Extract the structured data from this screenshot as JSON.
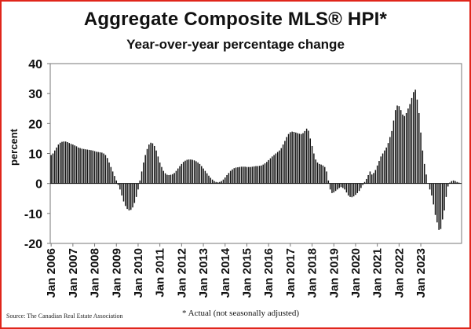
{
  "header": {
    "title": "Aggregate Composite MLS® HPI*",
    "subtitle": "Year-over-year percentage change"
  },
  "footer": {
    "source": "Source: The Canadian Real Estate Association",
    "note": "* Actual (not seasonally adjusted)"
  },
  "chart_data": {
    "type": "bar",
    "title": "Aggregate Composite MLS® HPI*",
    "subtitle": "Year-over-year percentage change",
    "ylabel": "percent",
    "xlabel": "",
    "ylim": [
      -20,
      40
    ],
    "yticks": [
      -20,
      -10,
      0,
      10,
      20,
      30,
      40
    ],
    "xtick_labels": [
      "Jan 2006",
      "Jan 2007",
      "Jan 2008",
      "Jan 2009",
      "Jan 2010",
      "Jan 2011",
      "Jan 2012",
      "Jan 2013",
      "Jan 2014",
      "Jan 2015",
      "Jan 2016",
      "Jan 2017",
      "Jan 2018",
      "Jan 2019",
      "Jan 2020",
      "Jan 2021",
      "Jan 2022",
      "Jan 2023"
    ],
    "grid": false,
    "bar_color": "#111111",
    "start": "Jan 2006",
    "frequency": "monthly",
    "values": [
      9.5,
      10.0,
      11.0,
      12.0,
      13.0,
      13.6,
      13.9,
      14.0,
      14.0,
      13.8,
      13.5,
      13.2,
      13.0,
      12.7,
      12.4,
      12.0,
      11.8,
      11.6,
      11.5,
      11.4,
      11.3,
      11.2,
      11.1,
      11.0,
      10.8,
      10.6,
      10.5,
      10.4,
      10.3,
      10.0,
      9.5,
      8.5,
      7.0,
      5.5,
      4.0,
      2.5,
      1.0,
      -0.5,
      -2.0,
      -4.0,
      -6.0,
      -7.5,
      -8.5,
      -9.0,
      -8.8,
      -8.0,
      -6.5,
      -4.5,
      -2.0,
      1.0,
      4.0,
      7.0,
      9.5,
      11.5,
      13.0,
      13.6,
      13.4,
      12.5,
      11.0,
      9.0,
      7.0,
      5.5,
      4.2,
      3.4,
      2.9,
      2.8,
      2.9,
      3.1,
      3.5,
      4.2,
      5.0,
      5.8,
      6.5,
      7.2,
      7.6,
      7.9,
      8.0,
      8.0,
      7.9,
      7.7,
      7.4,
      7.0,
      6.5,
      5.8,
      5.0,
      4.2,
      3.4,
      2.6,
      1.9,
      1.3,
      0.8,
      0.5,
      0.4,
      0.5,
      0.8,
      1.3,
      2.0,
      2.8,
      3.5,
      4.2,
      4.7,
      5.1,
      5.3,
      5.4,
      5.5,
      5.6,
      5.6,
      5.6,
      5.5,
      5.5,
      5.5,
      5.6,
      5.7,
      5.8,
      5.8,
      5.9,
      6.0,
      6.3,
      6.7,
      7.2,
      7.8,
      8.4,
      9.0,
      9.5,
      10.0,
      10.5,
      11.0,
      11.8,
      13.0,
      14.2,
      15.5,
      16.5,
      17.1,
      17.3,
      17.2,
      17.0,
      16.8,
      16.6,
      16.5,
      16.8,
      17.5,
      18.3,
      17.6,
      15.0,
      12.5,
      10.0,
      8.0,
      7.0,
      6.5,
      6.3,
      6.0,
      5.5,
      4.0,
      1.0,
      -2.0,
      -3.2,
      -3.0,
      -2.5,
      -2.0,
      -1.5,
      -1.2,
      -1.5,
      -2.0,
      -3.0,
      -4.0,
      -4.5,
      -4.6,
      -4.3,
      -3.8,
      -3.2,
      -2.5,
      -1.5,
      -0.5,
      0.5,
      1.5,
      2.8,
      4.0,
      3.0,
      3.5,
      4.5,
      6.0,
      7.5,
      9.0,
      10.0,
      11.0,
      12.0,
      13.5,
      15.5,
      17.5,
      21.0,
      24.5,
      26.0,
      25.8,
      24.5,
      23.0,
      22.5,
      23.5,
      25.0,
      26.5,
      28.5,
      30.5,
      31.3,
      28.0,
      23.5,
      17.0,
      11.0,
      6.5,
      3.0,
      0.0,
      -2.0,
      -4.0,
      -7.0,
      -10.5,
      -13.0,
      -15.5,
      -15.2,
      -12.0,
      -9.0,
      -4.5,
      -1.0,
      0.3,
      0.8,
      1.0,
      0.8,
      0.5,
      0.3,
      0.0
    ]
  }
}
